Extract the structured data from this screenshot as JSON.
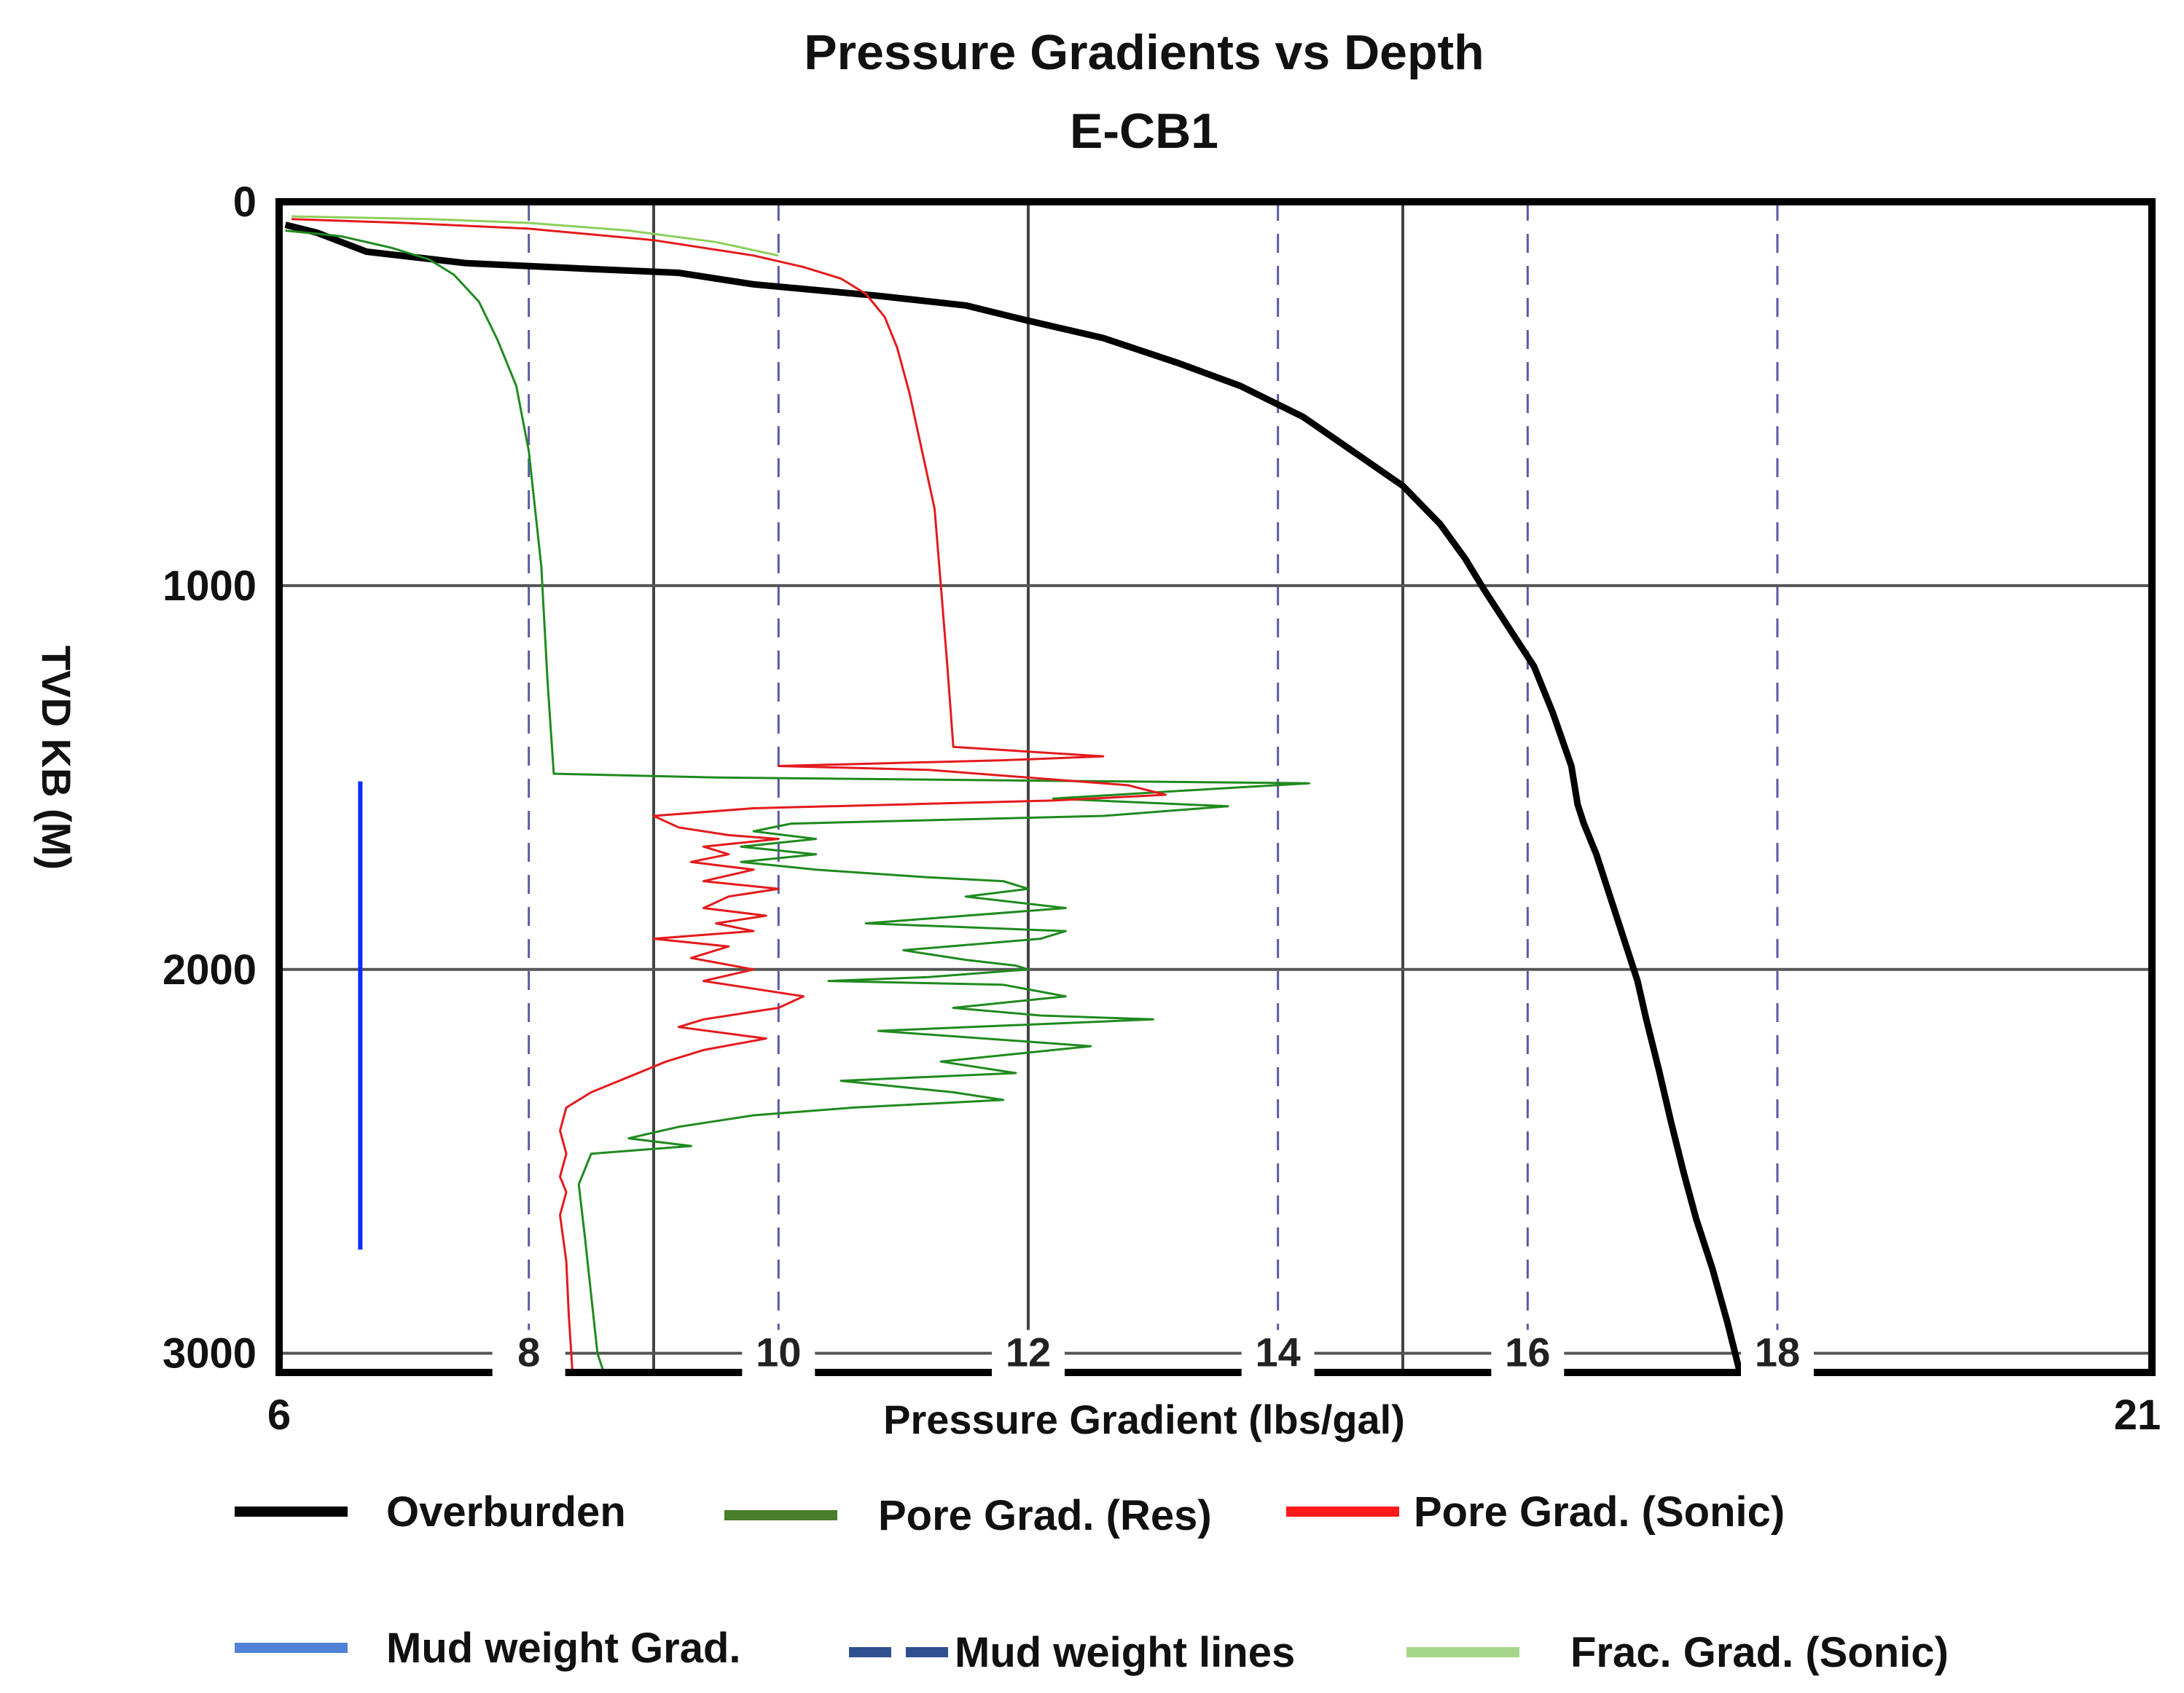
{
  "chart_data": {
    "type": "line",
    "title": "Pressure Gradients vs Depth",
    "subtitle": "E-CB1",
    "xlabel": "Pressure Gradient (lbs/gal)",
    "ylabel": "TVD KB (M)",
    "xlim": [
      6,
      21
    ],
    "ylim": [
      0,
      3050
    ],
    "y_inverted": true,
    "x_edge_labels": [
      "6",
      "21"
    ],
    "x_inner_ticks": [
      8,
      10,
      12,
      14,
      16,
      18
    ],
    "x_inner_labels": [
      "8",
      "10",
      "12",
      "14",
      "16",
      "18"
    ],
    "y_ticks": [
      0,
      1000,
      2000,
      3000
    ],
    "y_tick_labels": [
      "0",
      "1000",
      "2000",
      "3000"
    ],
    "grid_solid_x": [
      9,
      12,
      15
    ],
    "grid_solid_y": [
      1000,
      2000,
      3000
    ],
    "mud_weight_lines_x": [
      8,
      10,
      14,
      16,
      18
    ],
    "series": [
      {
        "name": "Overburden",
        "color": "#000000",
        "points": [
          [
            6.05,
            60
          ],
          [
            6.3,
            80
          ],
          [
            6.7,
            130
          ],
          [
            7.5,
            160
          ],
          [
            8.5,
            175
          ],
          [
            9.2,
            185
          ],
          [
            9.8,
            215
          ],
          [
            10.8,
            245
          ],
          [
            11.5,
            270
          ],
          [
            12,
            310
          ],
          [
            12.6,
            355
          ],
          [
            13.2,
            420
          ],
          [
            13.7,
            480
          ],
          [
            14.2,
            560
          ],
          [
            14.6,
            650
          ],
          [
            15.0,
            740
          ],
          [
            15.3,
            840
          ],
          [
            15.5,
            930
          ],
          [
            15.65,
            1010
          ],
          [
            15.85,
            1110
          ],
          [
            16.05,
            1210
          ],
          [
            16.2,
            1330
          ],
          [
            16.35,
            1470
          ],
          [
            16.4,
            1570
          ],
          [
            16.45,
            1620
          ],
          [
            16.55,
            1700
          ],
          [
            16.65,
            1800
          ],
          [
            16.8,
            1950
          ],
          [
            16.88,
            2030
          ],
          [
            16.95,
            2130
          ],
          [
            17.05,
            2260
          ],
          [
            17.15,
            2400
          ],
          [
            17.25,
            2530
          ],
          [
            17.35,
            2650
          ],
          [
            17.48,
            2780
          ],
          [
            17.6,
            2920
          ],
          [
            17.7,
            3050
          ]
        ]
      },
      {
        "name": "Pore Grad. (Res)",
        "color": "#1f8a1f",
        "points": [
          [
            6.05,
            75
          ],
          [
            6.5,
            90
          ],
          [
            6.9,
            120
          ],
          [
            7.2,
            150
          ],
          [
            7.4,
            190
          ],
          [
            7.6,
            260
          ],
          [
            7.75,
            360
          ],
          [
            7.9,
            480
          ],
          [
            8.0,
            650
          ],
          [
            8.1,
            950
          ],
          [
            8.15,
            1250
          ],
          [
            8.2,
            1490
          ],
          [
            9.5,
            1500
          ],
          [
            14.25,
            1515
          ],
          [
            13.2,
            1535
          ],
          [
            12.2,
            1555
          ],
          [
            13.6,
            1575
          ],
          [
            12.6,
            1600
          ],
          [
            10.1,
            1620
          ],
          [
            9.8,
            1640
          ],
          [
            10.3,
            1660
          ],
          [
            9.7,
            1680
          ],
          [
            10.3,
            1700
          ],
          [
            9.7,
            1720
          ],
          [
            10.3,
            1740
          ],
          [
            11.2,
            1760
          ],
          [
            11.8,
            1770
          ],
          [
            12.0,
            1790
          ],
          [
            11.5,
            1810
          ],
          [
            12.3,
            1840
          ],
          [
            10.7,
            1880
          ],
          [
            12.3,
            1900
          ],
          [
            12.1,
            1920
          ],
          [
            11.0,
            1950
          ],
          [
            11.5,
            1975
          ],
          [
            11.9,
            1990
          ],
          [
            12.0,
            2000
          ],
          [
            11.2,
            2020
          ],
          [
            10.4,
            2030
          ],
          [
            11.8,
            2040
          ],
          [
            12.3,
            2070
          ],
          [
            11.4,
            2100
          ],
          [
            12.1,
            2120
          ],
          [
            13.0,
            2130
          ],
          [
            10.8,
            2160
          ],
          [
            12.5,
            2200
          ],
          [
            11.3,
            2240
          ],
          [
            11.9,
            2270
          ],
          [
            10.5,
            2290
          ],
          [
            11.4,
            2320
          ],
          [
            11.8,
            2340
          ],
          [
            10.6,
            2360
          ],
          [
            9.8,
            2380
          ],
          [
            9.2,
            2410
          ],
          [
            8.8,
            2440
          ],
          [
            9.3,
            2460
          ],
          [
            8.5,
            2480
          ],
          [
            8.4,
            2560
          ],
          [
            8.45,
            2700
          ],
          [
            8.5,
            2850
          ],
          [
            8.55,
            3000
          ],
          [
            8.6,
            3050
          ]
        ]
      },
      {
        "name": "Pore Grad. (Sonic)",
        "color": "#e41a1c",
        "points": [
          [
            6.1,
            45
          ],
          [
            7.0,
            55
          ],
          [
            8.0,
            70
          ],
          [
            9.0,
            100
          ],
          [
            9.8,
            140
          ],
          [
            10.2,
            170
          ],
          [
            10.5,
            200
          ],
          [
            10.7,
            240
          ],
          [
            10.85,
            300
          ],
          [
            10.95,
            380
          ],
          [
            11.05,
            500
          ],
          [
            11.15,
            650
          ],
          [
            11.25,
            800
          ],
          [
            11.3,
            1000
          ],
          [
            11.35,
            1200
          ],
          [
            11.4,
            1420
          ],
          [
            12.6,
            1445
          ],
          [
            11.8,
            1455
          ],
          [
            10.0,
            1470
          ],
          [
            11.2,
            1480
          ],
          [
            12.8,
            1520
          ],
          [
            13.1,
            1545
          ],
          [
            12.2,
            1560
          ],
          [
            11.0,
            1570
          ],
          [
            9.8,
            1580
          ],
          [
            9.0,
            1600
          ],
          [
            9.2,
            1630
          ],
          [
            9.6,
            1650
          ],
          [
            10.0,
            1660
          ],
          [
            9.4,
            1680
          ],
          [
            9.6,
            1700
          ],
          [
            9.3,
            1720
          ],
          [
            9.8,
            1740
          ],
          [
            9.4,
            1770
          ],
          [
            10.0,
            1790
          ],
          [
            9.6,
            1810
          ],
          [
            9.4,
            1840
          ],
          [
            9.9,
            1860
          ],
          [
            9.5,
            1880
          ],
          [
            9.8,
            1900
          ],
          [
            9.0,
            1920
          ],
          [
            9.6,
            1940
          ],
          [
            9.3,
            1970
          ],
          [
            9.8,
            2000
          ],
          [
            9.4,
            2030
          ],
          [
            10.2,
            2070
          ],
          [
            10.0,
            2100
          ],
          [
            9.4,
            2130
          ],
          [
            9.2,
            2150
          ],
          [
            9.9,
            2180
          ],
          [
            9.4,
            2210
          ],
          [
            9.1,
            2240
          ],
          [
            8.8,
            2280
          ],
          [
            8.5,
            2320
          ],
          [
            8.3,
            2360
          ],
          [
            8.25,
            2420
          ],
          [
            8.3,
            2480
          ],
          [
            8.25,
            2540
          ],
          [
            8.3,
            2580
          ],
          [
            8.25,
            2640
          ],
          [
            8.3,
            2760
          ],
          [
            8.32,
            2900
          ],
          [
            8.35,
            3050
          ]
        ]
      },
      {
        "name": "Frac. Grad. (Sonic)",
        "color": "#8ccf5a",
        "points": [
          [
            6.1,
            38
          ],
          [
            7.2,
            45
          ],
          [
            8.0,
            55
          ],
          [
            8.8,
            75
          ],
          [
            9.5,
            105
          ],
          [
            10.0,
            140
          ]
        ]
      },
      {
        "name": "Mud weight Grad.",
        "color": "#0a2bff",
        "points": [
          [
            6.65,
            1510
          ],
          [
            6.65,
            2730
          ]
        ]
      }
    ],
    "legend": [
      {
        "label": "Overburden",
        "color": "#000000",
        "style": "solid"
      },
      {
        "label": "Pore Grad. (Res)",
        "color": "#4a7d2c",
        "style": "solid"
      },
      {
        "label": "Pore Grad. (Sonic)",
        "color": "#ff1a1a",
        "style": "solid"
      },
      {
        "label": "Mud weight Grad.",
        "color": "#4f82d6",
        "style": "solid"
      },
      {
        "label": "Mud weight lines",
        "color": "#2f4f8f",
        "style": "dashed"
      },
      {
        "label": "Frac. Grad. (Sonic)",
        "color": "#a6d68a",
        "style": "solid"
      }
    ],
    "legend_position": "bottom"
  }
}
